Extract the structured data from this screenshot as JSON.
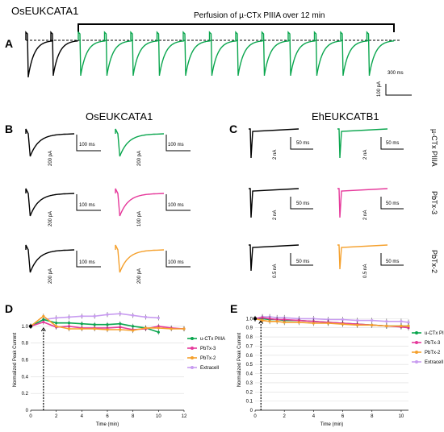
{
  "figure": {
    "a_title": "OsEUKCATA1",
    "perfusion_label": "Perfusion of µ-CTx PIIIA over 12 min",
    "labels": {
      "a": "A",
      "b": "B",
      "c": "C",
      "d": "D",
      "e": "E"
    },
    "b_header": "OsEUKCATA1",
    "c_header": "EhEUKCATB1",
    "row_labels": [
      "µ-CTx PIIIA",
      "PbTx-3",
      "PbTx-2"
    ],
    "a_scale": {
      "time": "300 ms",
      "amp": "100 pA"
    },
    "b_scales": [
      {
        "time": "100 ms",
        "amp": "200 pA"
      },
      {
        "time": "100 ms",
        "amp": "200 pA"
      },
      {
        "time": "100 ms",
        "amp": "200 pA"
      },
      {
        "time": "100 ms",
        "amp": "100 pA"
      },
      {
        "time": "100 ms",
        "amp": "200 pA"
      },
      {
        "time": "100 ms",
        "amp": "200 pA"
      }
    ],
    "c_scales": [
      {
        "time": "50 ms",
        "amp": "2 nA"
      },
      {
        "time": "50 ms",
        "amp": "2 nA"
      },
      {
        "time": "50 ms",
        "amp": "2 nA"
      },
      {
        "time": "50 ms",
        "amp": "2 nA"
      },
      {
        "time": "50 ms",
        "amp": "0.5 nA"
      },
      {
        "time": "50 ms",
        "amp": "0.5 nA"
      }
    ]
  },
  "colors": {
    "black": "#000000",
    "green": "#0aa64e",
    "magenta": "#e6399b",
    "orange": "#f5a02c",
    "lavender": "#c89cf0"
  },
  "chart_data": [
    {
      "type": "line",
      "panel": "D",
      "xlabel": "Time (min)",
      "ylabel": "Normalized Peak Current",
      "xlim": [
        0,
        12
      ],
      "ylim": [
        0,
        1.2
      ],
      "xticks": [
        0,
        2,
        4,
        6,
        8,
        10,
        12
      ],
      "yticks": [
        0,
        0.2,
        0.4,
        0.6,
        0.8,
        1.0
      ],
      "ytick_labels": [
        "0",
        "0.2",
        "0.4",
        "0.6",
        "0.8",
        "1.0"
      ],
      "series": [
        {
          "name": "u-CTx PIIIA",
          "color": "#0aa64e",
          "x": [
            0,
            1,
            2,
            3,
            4,
            5,
            6,
            7,
            8,
            9,
            10
          ],
          "y": [
            1.0,
            1.08,
            1.04,
            1.04,
            1.03,
            1.02,
            1.02,
            1.03,
            1.0,
            0.98,
            0.93
          ]
        },
        {
          "name": "PbTx-3",
          "color": "#e6399b",
          "x": [
            0,
            1,
            2,
            3,
            4,
            5,
            6,
            7,
            8,
            9,
            10,
            11,
            12
          ],
          "y": [
            1.0,
            1.05,
            0.99,
            1.0,
            0.98,
            0.98,
            0.98,
            0.99,
            0.96,
            0.97,
            1.0,
            0.98,
            0.97
          ]
        },
        {
          "name": "PbTx-2",
          "color": "#f5a02c",
          "x": [
            0,
            1,
            2,
            3,
            4,
            5,
            6,
            7,
            8,
            9,
            10,
            11,
            12
          ],
          "y": [
            1.0,
            1.12,
            1.0,
            0.97,
            0.97,
            0.97,
            0.96,
            0.96,
            0.95,
            0.98,
            0.98,
            0.97,
            0.97
          ]
        },
        {
          "name": "Extracell",
          "color": "#c89cf0",
          "x": [
            0,
            1,
            2,
            3,
            4,
            5,
            6,
            7,
            8,
            9,
            10
          ],
          "y": [
            1.0,
            1.08,
            1.1,
            1.11,
            1.12,
            1.12,
            1.14,
            1.15,
            1.13,
            1.11,
            1.1
          ]
        }
      ]
    },
    {
      "type": "line",
      "panel": "E",
      "ylabel": "Normalized Peak Current",
      "xlabel": "Time (min)",
      "xlim": [
        0,
        10.5
      ],
      "ylim": [
        0,
        1.1
      ],
      "xticks": [
        0,
        2,
        4,
        6,
        8,
        10
      ],
      "yticks": [
        0,
        0.1,
        0.2,
        0.3,
        0.4,
        0.5,
        0.6,
        0.7,
        0.8,
        0.9,
        1.0
      ],
      "ytick_labels": [
        "0",
        "0.1",
        "0.2",
        "0.3",
        "0.4",
        "0.5",
        "0.6",
        "0.7",
        "0.8",
        "0.9",
        "1.0"
      ],
      "series": [
        {
          "name": "u-CTx PIIIA",
          "color": "#0aa64e",
          "x": [
            0,
            0.5,
            1,
            1.5,
            2,
            3,
            4,
            5,
            6,
            7,
            8,
            9,
            10,
            10.5
          ],
          "y": [
            1.0,
            1.0,
            0.99,
            0.99,
            0.98,
            0.98,
            0.97,
            0.96,
            0.95,
            0.94,
            0.93,
            0.92,
            0.92,
            0.92
          ]
        },
        {
          "name": "PbTx-3",
          "color": "#e6399b",
          "x": [
            0,
            0.5,
            1,
            1.5,
            2,
            3,
            4,
            5,
            6,
            7,
            8,
            9,
            10,
            10.5
          ],
          "y": [
            1.0,
            1.01,
            1.0,
            0.99,
            0.99,
            0.98,
            0.97,
            0.96,
            0.95,
            0.94,
            0.93,
            0.92,
            0.91,
            0.9
          ]
        },
        {
          "name": "PbTx-2",
          "color": "#f5a02c",
          "x": [
            0,
            0.5,
            1,
            1.5,
            2,
            3,
            4,
            5,
            6,
            7,
            8,
            9,
            10,
            10.5
          ],
          "y": [
            1.0,
            0.98,
            0.97,
            0.97,
            0.96,
            0.96,
            0.95,
            0.95,
            0.94,
            0.93,
            0.93,
            0.92,
            0.92,
            0.92
          ]
        },
        {
          "name": "Extracell",
          "color": "#c89cf0",
          "x": [
            0,
            0.5,
            1,
            1.5,
            2,
            3,
            4,
            5,
            6,
            7,
            8,
            9,
            10,
            10.5
          ],
          "y": [
            1.0,
            1.02,
            1.02,
            1.01,
            1.01,
            1.0,
            1.0,
            0.99,
            0.99,
            0.98,
            0.98,
            0.97,
            0.97,
            0.96
          ]
        }
      ]
    }
  ]
}
